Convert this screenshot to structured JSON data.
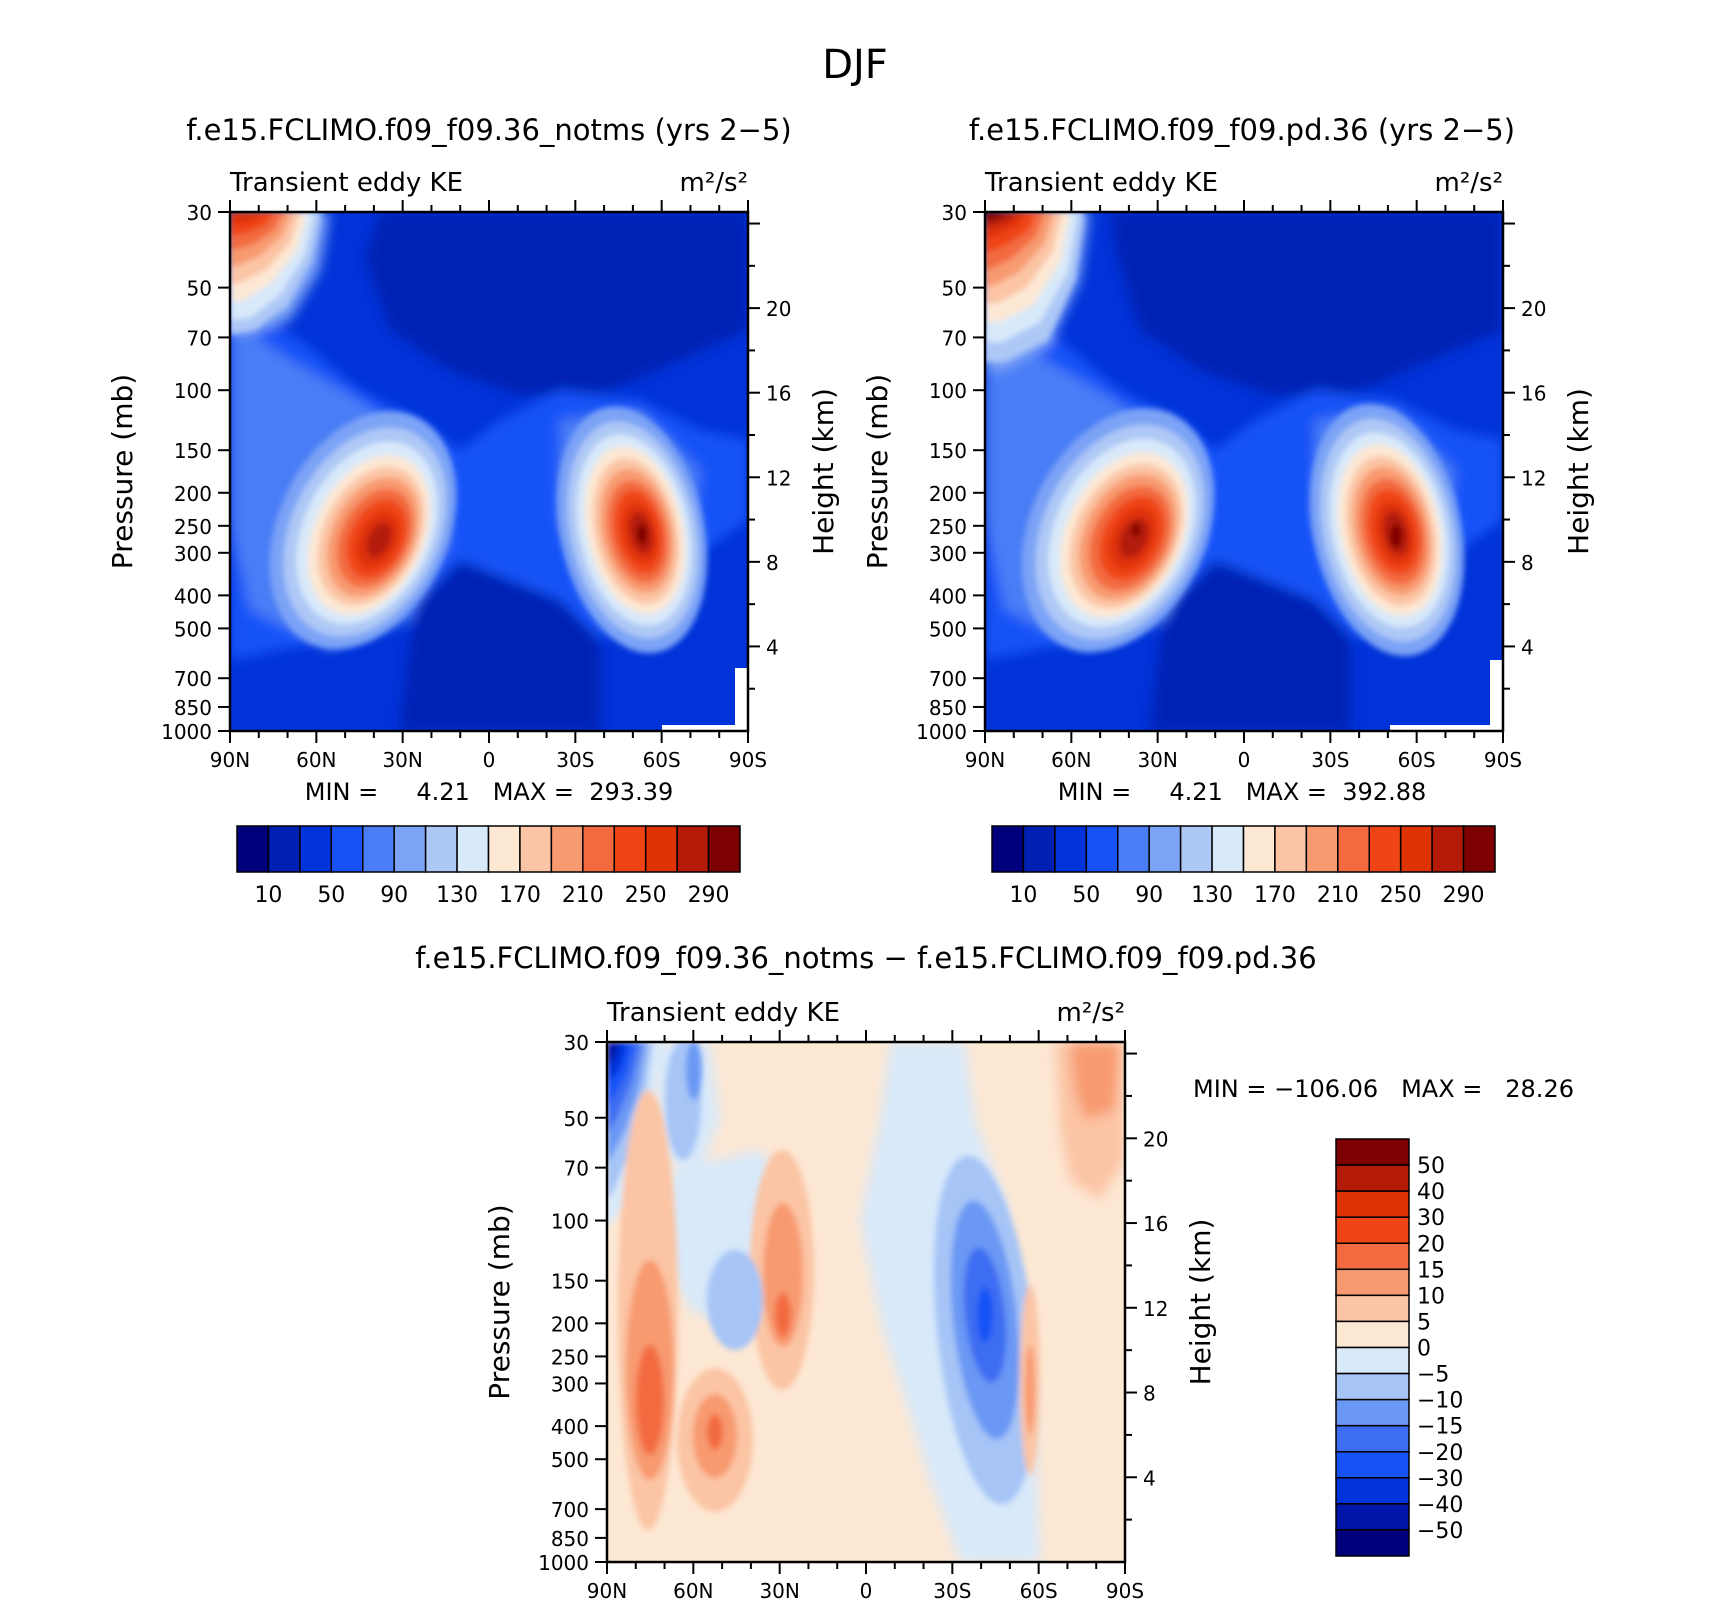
{
  "figure": {
    "title": "DJF"
  },
  "colors": {
    "abs_levels": [
      "#00007f",
      "#0020b4",
      "#0033d9",
      "#1752f7",
      "#4a7df6",
      "#7ba3f6",
      "#aec8f6",
      "#d8e9fa",
      "#fde8d4",
      "#fbc4a4",
      "#f89a70",
      "#f36a3f",
      "#ef4416",
      "#de3207",
      "#b31a07",
      "#7f0000"
    ],
    "diff_levels": [
      "#00007f",
      "#0016a8",
      "#0033d9",
      "#1752f7",
      "#3c6df2",
      "#6a98f4",
      "#a6c4f6",
      "#d8e9fa",
      "#fde8d4",
      "#fbc4a4",
      "#f89a70",
      "#f36a3f",
      "#ef4416",
      "#de3207",
      "#b31a07",
      "#7f0000"
    ]
  },
  "panels": [
    {
      "id": "top-left",
      "title": "f.e15.FCLIMO.f09_f09.36_notms (yrs 2−5)",
      "left_label": "Transient eddy KE",
      "right_label": "m²/s²",
      "minmax": "MIN =     4.21   MAX =  293.39",
      "colorbar_labels": [
        "10",
        "50",
        "90",
        "130",
        "170",
        "210",
        "250",
        "290"
      ]
    },
    {
      "id": "top-right",
      "title": "f.e15.FCLIMO.f09_f09.pd.36 (yrs 2−5)",
      "left_label": "Transient eddy KE",
      "right_label": "m²/s²",
      "minmax": "MIN =     4.21   MAX =  392.88",
      "colorbar_labels": [
        "10",
        "50",
        "90",
        "130",
        "170",
        "210",
        "250",
        "290"
      ]
    },
    {
      "id": "bottom",
      "title": "f.e15.FCLIMO.f09_f09.36_notms − f.e15.FCLIMO.f09_f09.pd.36",
      "left_label": "Transient eddy KE",
      "right_label": "m²/s²",
      "minmax": "MIN = −106.06   MAX =   28.26",
      "colorbar_labels": [
        "50",
        "40",
        "30",
        "20",
        "15",
        "10",
        "5",
        "0",
        "−5",
        "−10",
        "−15",
        "−20",
        "−30",
        "−40",
        "−50"
      ]
    }
  ],
  "chart_data": [
    {
      "type": "heatmap",
      "title": "f.e15.FCLIMO.f09_f09.36_notms (yrs 2−5)",
      "xlabel": "",
      "ylabel": "Pressure (mb)",
      "y2label": "Height (km)",
      "x_ticks": [
        "90N",
        "60N",
        "30N",
        "0",
        "30S",
        "60S",
        "90S"
      ],
      "y_ticks": [
        "30",
        "50",
        "70",
        "100",
        "150",
        "200",
        "250",
        "300",
        "400",
        "500",
        "700",
        "850",
        "1000"
      ],
      "y2_ticks": [
        "20",
        "16",
        "12",
        "8",
        "4"
      ],
      "ylim": [
        1000,
        30
      ],
      "log_y": true,
      "min": 4.21,
      "max": 293.39,
      "levels": [
        10,
        30,
        50,
        70,
        90,
        110,
        130,
        150,
        170,
        190,
        210,
        230,
        250,
        270,
        290
      ],
      "features": [
        {
          "label": "NH jet maximum",
          "lat": 37,
          "p": 300,
          "value": 270
        },
        {
          "label": "SH jet maximum",
          "lat": -52,
          "p": 270,
          "value": 290
        },
        {
          "label": "NH stratospheric maximum",
          "lat": 85,
          "p": 30,
          "value": 270
        }
      ]
    },
    {
      "type": "heatmap",
      "title": "f.e15.FCLIMO.f09_f09.pd.36 (yrs 2−5)",
      "xlabel": "",
      "ylabel": "Pressure (mb)",
      "y2label": "Height (km)",
      "x_ticks": [
        "90N",
        "60N",
        "30N",
        "0",
        "30S",
        "60S",
        "90S"
      ],
      "y_ticks": [
        "30",
        "50",
        "70",
        "100",
        "150",
        "200",
        "250",
        "300",
        "400",
        "500",
        "700",
        "850",
        "1000"
      ],
      "y2_ticks": [
        "20",
        "16",
        "12",
        "8",
        "4"
      ],
      "ylim": [
        1000,
        30
      ],
      "log_y": true,
      "min": 4.21,
      "max": 392.88,
      "levels": [
        10,
        30,
        50,
        70,
        90,
        110,
        130,
        150,
        170,
        190,
        210,
        230,
        250,
        270,
        290
      ],
      "features": [
        {
          "label": "NH jet maximum",
          "lat": 38,
          "p": 270,
          "value": 290
        },
        {
          "label": "SH jet maximum",
          "lat": -52,
          "p": 270,
          "value": 290
        },
        {
          "label": "NH stratospheric maximum",
          "lat": 88,
          "p": 30,
          "value": 390
        }
      ]
    },
    {
      "type": "heatmap",
      "title": "f.e15.FCLIMO.f09_f09.36_notms − f.e15.FCLIMO.f09_f09.pd.36",
      "xlabel": "",
      "ylabel": "Pressure (mb)",
      "y2label": "Height (km)",
      "x_ticks": [
        "90N",
        "60N",
        "30N",
        "0",
        "30S",
        "60S",
        "90S"
      ],
      "y_ticks": [
        "30",
        "50",
        "70",
        "100",
        "150",
        "200",
        "250",
        "300",
        "400",
        "500",
        "700",
        "850",
        "1000"
      ],
      "y2_ticks": [
        "20",
        "16",
        "12",
        "8",
        "4"
      ],
      "ylim": [
        1000,
        30
      ],
      "log_y": true,
      "min": -106.06,
      "max": 28.26,
      "levels": [
        -50,
        -40,
        -30,
        -20,
        -15,
        -10,
        -5,
        0,
        5,
        10,
        15,
        20,
        30,
        40,
        50
      ],
      "features": [
        {
          "label": "NH polar stratosphere minimum",
          "lat": 87,
          "p": 35,
          "value": -106
        },
        {
          "label": "positive band",
          "lat": 74,
          "p": 350,
          "value": 25
        },
        {
          "label": "positive anomaly",
          "lat": 53,
          "p": 420,
          "value": 22
        },
        {
          "label": "positive anomaly",
          "lat": 30,
          "p": 200,
          "value": 25
        },
        {
          "label": "negative anomaly",
          "lat": -42,
          "p": 220,
          "value": -25
        }
      ]
    }
  ]
}
